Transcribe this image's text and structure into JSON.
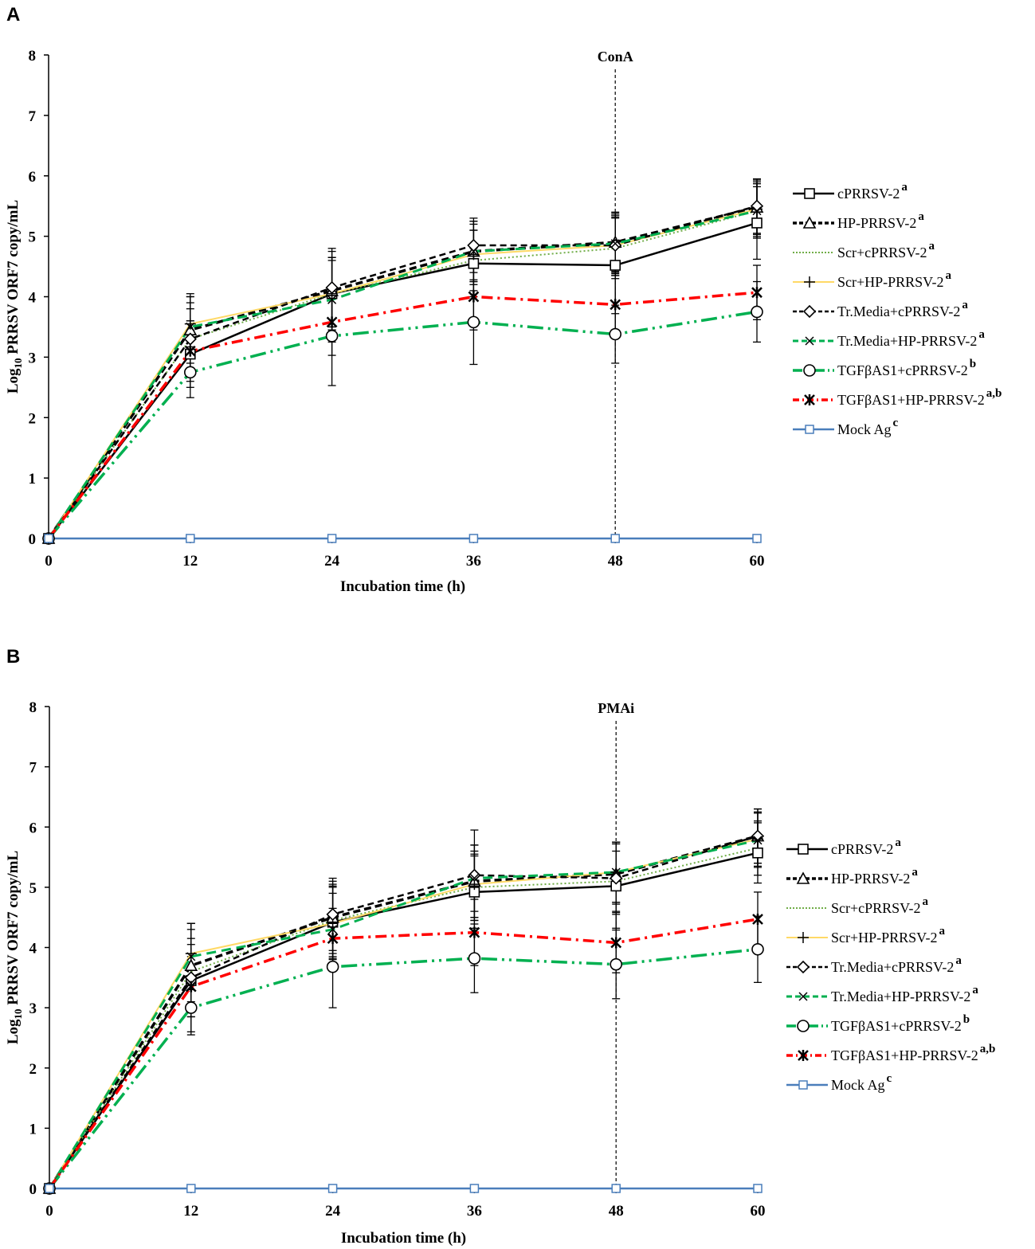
{
  "chart_data": [
    {
      "type": "line",
      "panel": "A",
      "title": "",
      "xlabel": "Incubation time (h)",
      "ylabel_main": "Log",
      "ylabel_sub": "10",
      "ylabel_rest": " PRRSV ORF7 copy/mL",
      "x": [
        0,
        12,
        24,
        36,
        48,
        60
      ],
      "xticks": [
        "0",
        "12",
        "24",
        "36",
        "48",
        "60"
      ],
      "yticks": [
        "0",
        "1",
        "2",
        "3",
        "4",
        "5",
        "6",
        "7",
        "8"
      ],
      "xlim": [
        0,
        60
      ],
      "ylim": [
        0,
        8
      ],
      "annotation": {
        "label": "ConA",
        "x": 48
      },
      "series": [
        {
          "name": "cPRRSV-2",
          "sup": "a",
          "values": [
            0,
            3.05,
            4.05,
            4.55,
            4.52,
            5.22
          ],
          "errors": [
            0,
            0.55,
            0.6,
            0.55,
            0.8,
            0.6
          ],
          "color": "#000000",
          "width": 2.5,
          "dash": "",
          "marker": "square"
        },
        {
          "name": "HP-PRRSV-2",
          "sup": "a",
          "values": [
            0,
            3.45,
            4.1,
            4.75,
            4.9,
            5.48
          ],
          "errors": [
            0,
            0.55,
            0.65,
            0.5,
            0.5,
            0.45
          ],
          "color": "#000000",
          "width": 3.5,
          "dash": "9,5",
          "marker": "triangle"
        },
        {
          "name": "Scr+cPRRSV-2",
          "sup": "a",
          "values": [
            0,
            3.3,
            4.05,
            4.6,
            4.8,
            5.42
          ],
          "errors": [
            0,
            0.5,
            0.55,
            0.5,
            0.5,
            0.45
          ],
          "color": "#70ad47",
          "width": 2,
          "dash": "2,3",
          "marker": "none"
        },
        {
          "name": "Scr+HP-PRRSV-2",
          "sup": "a",
          "values": [
            0,
            3.55,
            4.05,
            4.7,
            4.85,
            5.45
          ],
          "errors": [
            0,
            0.5,
            0.6,
            0.5,
            0.5,
            0.45
          ],
          "color": "#ffd966",
          "width": 2,
          "dash": "",
          "marker": "plus"
        },
        {
          "name": "Tr.Media+cPRRSV-2",
          "sup": "a",
          "values": [
            0,
            3.3,
            4.15,
            4.85,
            4.85,
            5.5
          ],
          "errors": [
            0,
            0.6,
            0.65,
            0.45,
            0.5,
            0.45
          ],
          "color": "#000000",
          "width": 2.5,
          "dash": "8,5",
          "marker": "diamond"
        },
        {
          "name": "Tr.Media+HP-PRRSV-2",
          "sup": "a",
          "values": [
            0,
            3.5,
            3.95,
            4.75,
            4.88,
            5.42
          ],
          "errors": [
            0,
            0.5,
            0.7,
            0.5,
            0.5,
            0.45
          ],
          "color": "#00b050",
          "width": 3,
          "dash": "12,7",
          "marker": "x"
        },
        {
          "name": "TGFβAS1+cPRRSV-2",
          "sup": "b",
          "values": [
            0,
            2.75,
            3.35,
            3.58,
            3.38,
            3.75
          ],
          "errors": [
            0,
            0.42,
            0.82,
            0.7,
            0.48,
            0.5
          ],
          "color": "#00b050",
          "width": 3.5,
          "dash": "20,6,3,6,3,6",
          "marker": "circle"
        },
        {
          "name": "TGFβAS1+HP-PRRSV-2",
          "sup": "a,b",
          "values": [
            0,
            3.1,
            3.58,
            4.0,
            3.87,
            4.07
          ],
          "errors": [
            0,
            0.5,
            0.55,
            0.55,
            0.55,
            0.45
          ],
          "color": "#ff0000",
          "width": 3.5,
          "dash": "14,6,3,6",
          "marker": "asterisk"
        },
        {
          "name": "Mock Ag",
          "sup": "c",
          "values": [
            0,
            0,
            0,
            0,
            0,
            0
          ],
          "errors": [
            0,
            0,
            0,
            0,
            0,
            0
          ],
          "color": "#4a7ebb",
          "width": 2.5,
          "dash": "",
          "marker": "square-open"
        }
      ]
    },
    {
      "type": "line",
      "panel": "B",
      "title": "",
      "xlabel": "Incubation time (h)",
      "ylabel_main": "Log",
      "ylabel_sub": "10",
      "ylabel_rest": " PRRSV ORF7 copy/mL",
      "x": [
        0,
        12,
        24,
        36,
        48,
        60
      ],
      "xticks": [
        "0",
        "12",
        "24",
        "36",
        "48",
        "60"
      ],
      "yticks": [
        "0",
        "1",
        "2",
        "3",
        "4",
        "5",
        "6",
        "7",
        "8"
      ],
      "xlim": [
        0,
        60
      ],
      "ylim": [
        0,
        8
      ],
      "annotation": {
        "label": "PMAi",
        "x": 48
      },
      "series": [
        {
          "name": "cPRRSV-2",
          "sup": "a",
          "values": [
            0,
            3.45,
            4.42,
            4.92,
            5.02,
            5.57
          ],
          "errors": [
            0,
            0.6,
            0.6,
            0.6,
            0.7,
            0.5
          ],
          "color": "#000000",
          "width": 2.5,
          "dash": "",
          "marker": "square"
        },
        {
          "name": "HP-PRRSV-2",
          "sup": "a",
          "values": [
            0,
            3.7,
            4.5,
            5.1,
            5.22,
            5.85
          ],
          "errors": [
            0,
            0.6,
            0.6,
            0.6,
            0.5,
            0.45
          ],
          "color": "#000000",
          "width": 3.5,
          "dash": "9,5",
          "marker": "triangle"
        },
        {
          "name": "Scr+cPRRSV-2",
          "sup": "a",
          "values": [
            0,
            3.6,
            4.45,
            5.0,
            5.1,
            5.65
          ],
          "errors": [
            0,
            0.55,
            0.6,
            0.55,
            0.5,
            0.45
          ],
          "color": "#70ad47",
          "width": 2,
          "dash": "2,3",
          "marker": "none"
        },
        {
          "name": "Scr+HP-PRRSV-2",
          "sup": "a",
          "values": [
            0,
            3.9,
            4.4,
            5.05,
            5.25,
            5.8
          ],
          "errors": [
            0,
            0.5,
            0.6,
            0.55,
            0.5,
            0.45
          ],
          "color": "#ffd966",
          "width": 2,
          "dash": "",
          "marker": "plus"
        },
        {
          "name": "Tr.Media+cPRRSV-2",
          "sup": "a",
          "values": [
            0,
            3.5,
            4.55,
            5.2,
            5.15,
            5.85
          ],
          "errors": [
            0,
            0.9,
            0.6,
            0.75,
            0.6,
            0.45
          ],
          "color": "#000000",
          "width": 2.5,
          "dash": "8,5",
          "marker": "diamond"
        },
        {
          "name": "Tr.Media+HP-PRRSV-2",
          "sup": "a",
          "values": [
            0,
            3.85,
            4.3,
            5.15,
            5.25,
            5.78
          ],
          "errors": [
            0,
            0.55,
            0.6,
            0.55,
            0.5,
            0.45
          ],
          "color": "#00b050",
          "width": 3,
          "dash": "12,7",
          "marker": "x"
        },
        {
          "name": "TGFβAS1+cPRRSV-2",
          "sup": "b",
          "values": [
            0,
            3.0,
            3.68,
            3.82,
            3.72,
            3.97
          ],
          "errors": [
            0,
            0.45,
            0.68,
            0.57,
            0.57,
            0.55
          ],
          "color": "#00b050",
          "width": 3.5,
          "dash": "20,6,3,6,3,6",
          "marker": "circle"
        },
        {
          "name": "TGFβAS1+HP-PRRSV-2",
          "sup": "a,b",
          "values": [
            0,
            3.35,
            4.15,
            4.25,
            4.08,
            4.47
          ],
          "errors": [
            0,
            0.5,
            0.5,
            0.55,
            0.5,
            0.45
          ],
          "color": "#ff0000",
          "width": 3.5,
          "dash": "14,6,3,6",
          "marker": "asterisk"
        },
        {
          "name": "Mock Ag",
          "sup": "c",
          "values": [
            0,
            0,
            0,
            0,
            0,
            0
          ],
          "errors": [
            0,
            0,
            0,
            0,
            0,
            0
          ],
          "color": "#4a7ebb",
          "width": 2.5,
          "dash": "",
          "marker": "square-open"
        }
      ]
    }
  ]
}
